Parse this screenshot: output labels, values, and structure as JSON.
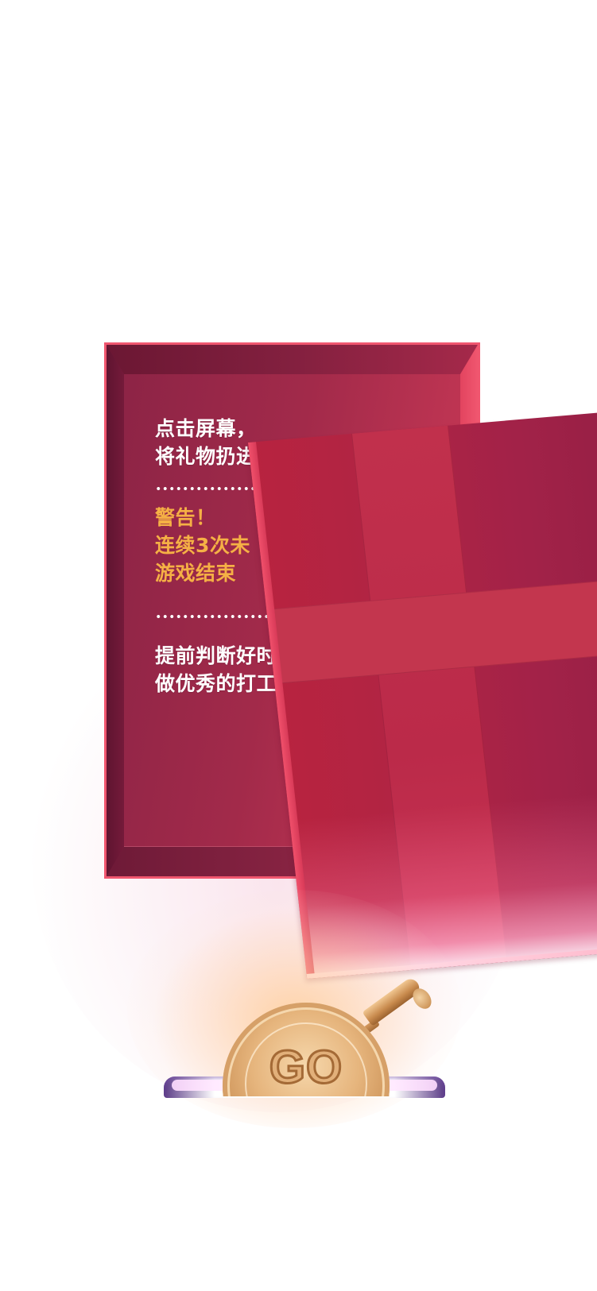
{
  "instructions": {
    "line1": "点击屏幕，",
    "line2": "将礼物扔进",
    "warning_title": "警告！",
    "warning_line1": "连续3次未",
    "warning_line2": "游戏结束",
    "tip_line1": "提前判断好时",
    "tip_line2": "做优秀的打工"
  },
  "button": {
    "go_label": "GO"
  },
  "colors": {
    "box_border": "#f0566f",
    "warning_text": "#f5b045",
    "coin": "#e6b57d"
  },
  "icons": {
    "coin_lever": "coin-lever-icon"
  }
}
